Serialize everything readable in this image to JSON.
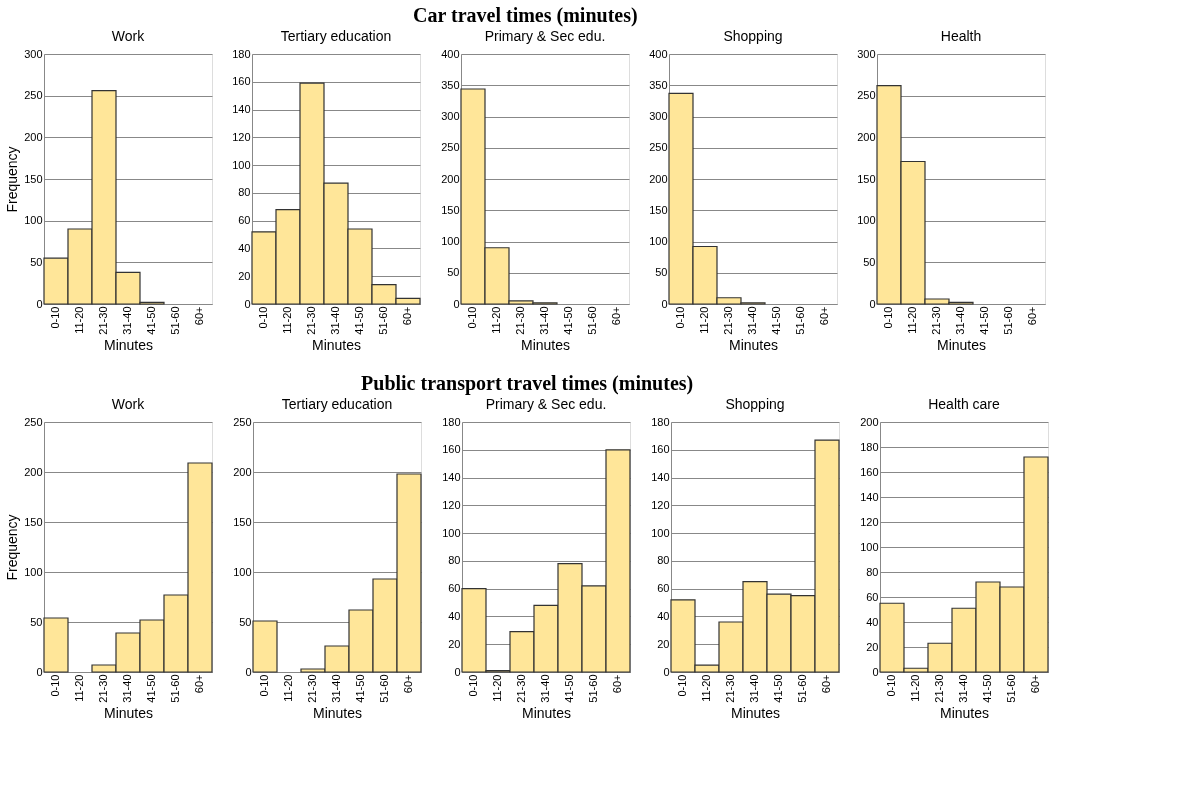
{
  "chart_data": [
    {
      "type": "bar",
      "title": "Work",
      "annotations": [
        "Car travel times (minutes)"
      ],
      "xlabel": "Minutes",
      "ylabel": "Frequency",
      "categories": [
        "0-10",
        "11-20",
        "21-30",
        "31-40",
        "41-50",
        "51-60",
        "60+"
      ],
      "values": [
        55,
        90,
        256,
        38,
        2,
        0,
        0
      ],
      "color": "#ffe699",
      "ylim": [
        0,
        300
      ],
      "yticks": [
        0,
        50,
        100,
        150,
        200,
        250,
        300
      ],
      "grid": "y"
    },
    {
      "type": "bar",
      "title": "Tertiary education",
      "xlabel": "Minutes",
      "categories": [
        "0-10",
        "11-20",
        "21-30",
        "31-40",
        "41-50",
        "51-60",
        "60+"
      ],
      "values": [
        52,
        68,
        159,
        87,
        54,
        14,
        4
      ],
      "color": "#ffe699",
      "ylim": [
        0,
        180
      ],
      "yticks": [
        0,
        20,
        40,
        60,
        80,
        100,
        120,
        140,
        160,
        180
      ],
      "grid": "y"
    },
    {
      "type": "bar",
      "title": "Primary & Sec edu.",
      "xlabel": "Minutes",
      "categories": [
        "0-10",
        "11-20",
        "21-30",
        "31-40",
        "41-50",
        "51-60",
        "60+"
      ],
      "values": [
        344,
        90,
        5,
        2,
        0,
        0,
        0
      ],
      "color": "#ffe699",
      "ylim": [
        0,
        400
      ],
      "yticks": [
        0,
        50,
        100,
        150,
        200,
        250,
        300,
        350,
        400
      ],
      "grid": "y"
    },
    {
      "type": "bar",
      "title": "Shopping",
      "xlabel": "Minutes",
      "categories": [
        "0-10",
        "11-20",
        "21-30",
        "31-40",
        "41-50",
        "51-60",
        "60+"
      ],
      "values": [
        337,
        92,
        10,
        2,
        0,
        0,
        0
      ],
      "color": "#ffe699",
      "ylim": [
        0,
        400
      ],
      "yticks": [
        0,
        50,
        100,
        150,
        200,
        250,
        300,
        350,
        400
      ],
      "grid": "y"
    },
    {
      "type": "bar",
      "title": "Health",
      "xlabel": "Minutes",
      "categories": [
        "0-10",
        "11-20",
        "21-30",
        "31-40",
        "41-50",
        "51-60",
        "60+"
      ],
      "values": [
        262,
        171,
        6,
        2,
        0,
        0,
        0
      ],
      "color": "#ffe699",
      "ylim": [
        0,
        300
      ],
      "yticks": [
        0,
        50,
        100,
        150,
        200,
        250,
        300
      ],
      "grid": "y"
    },
    {
      "type": "bar",
      "title": "Work",
      "annotations": [
        "Public transport travel times (minutes)"
      ],
      "xlabel": "Minutes",
      "ylabel": "Frequency",
      "categories": [
        "0-10",
        "11-20",
        "21-30",
        "31-40",
        "41-50",
        "51-60",
        "60+"
      ],
      "values": [
        54,
        0,
        7,
        39,
        52,
        77,
        209
      ],
      "color": "#ffe699",
      "ylim": [
        0,
        250
      ],
      "yticks": [
        0,
        50,
        100,
        150,
        200,
        250
      ],
      "grid": "y"
    },
    {
      "type": "bar",
      "title": "Tertiary education",
      "xlabel": "Minutes",
      "categories": [
        "0-10",
        "11-20",
        "21-30",
        "31-40",
        "41-50",
        "51-60",
        "60+"
      ],
      "values": [
        51,
        0,
        3,
        26,
        62,
        93,
        198
      ],
      "color": "#ffe699",
      "ylim": [
        0,
        250
      ],
      "yticks": [
        0,
        50,
        100,
        150,
        200,
        250
      ],
      "grid": "y"
    },
    {
      "type": "bar",
      "title": "Primary & Sec edu.",
      "xlabel": "Minutes",
      "categories": [
        "0-10",
        "11-20",
        "21-30",
        "31-40",
        "41-50",
        "51-60",
        "60+"
      ],
      "values": [
        60,
        1,
        29,
        48,
        78,
        62,
        160
      ],
      "color": "#ffe699",
      "ylim": [
        0,
        180
      ],
      "yticks": [
        0,
        20,
        40,
        60,
        80,
        100,
        120,
        140,
        160,
        180
      ],
      "grid": "y"
    },
    {
      "type": "bar",
      "title": "Shopping",
      "xlabel": "Minutes",
      "categories": [
        "0-10",
        "11-20",
        "21-30",
        "31-40",
        "41-50",
        "51-60",
        "60+"
      ],
      "values": [
        52,
        5,
        36,
        65,
        56,
        55,
        167
      ],
      "color": "#ffe699",
      "ylim": [
        0,
        180
      ],
      "yticks": [
        0,
        20,
        40,
        60,
        80,
        100,
        120,
        140,
        160,
        180
      ],
      "grid": "y"
    },
    {
      "type": "bar",
      "title": "Health care",
      "xlabel": "Minutes",
      "categories": [
        "0-10",
        "11-20",
        "21-30",
        "31-40",
        "41-50",
        "51-60",
        "60+"
      ],
      "values": [
        55,
        3,
        23,
        51,
        72,
        68,
        172
      ],
      "color": "#ffe699",
      "ylim": [
        0,
        200
      ],
      "yticks": [
        0,
        20,
        40,
        60,
        80,
        100,
        120,
        140,
        160,
        180,
        200
      ],
      "grid": "y"
    }
  ]
}
